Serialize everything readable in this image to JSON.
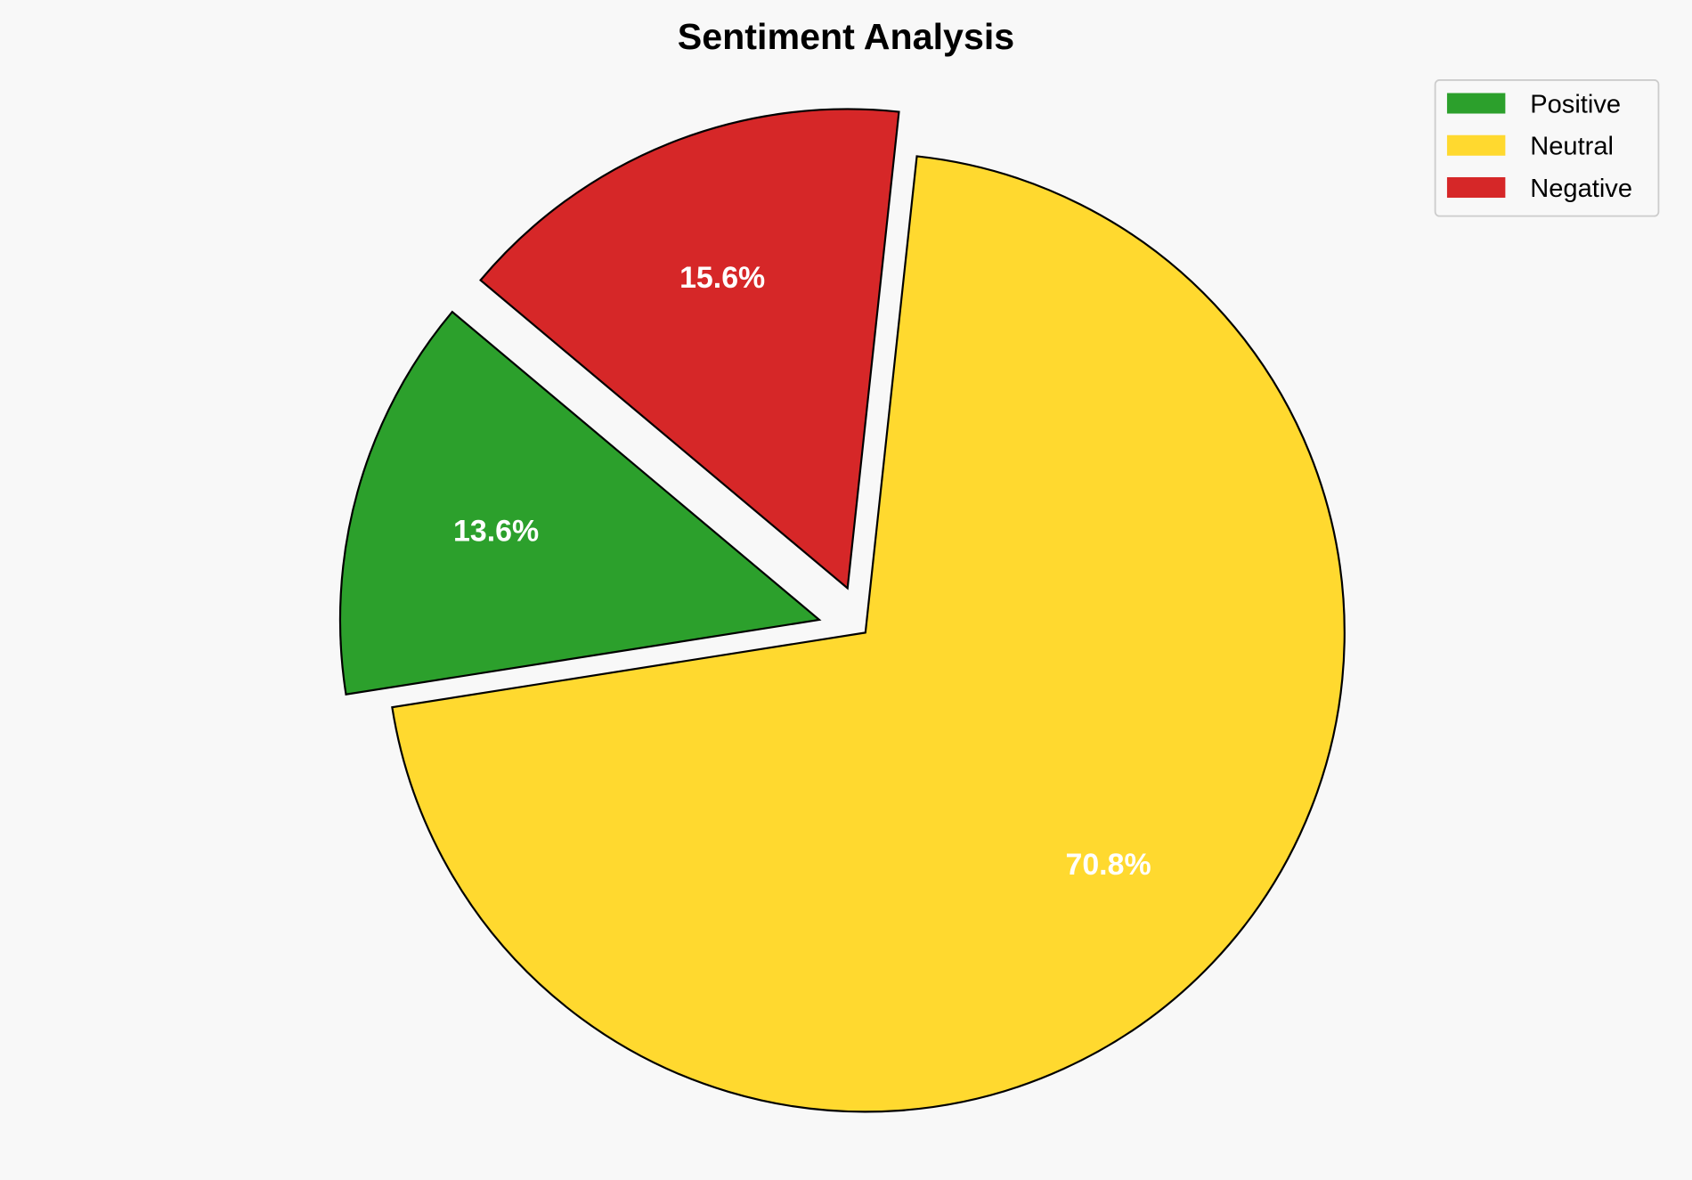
{
  "chart_data": {
    "type": "pie",
    "title": "Sentiment Analysis",
    "categories": [
      "Positive",
      "Neutral",
      "Negative"
    ],
    "values": [
      13.6,
      70.8,
      15.6
    ],
    "labels": [
      "13.6%",
      "70.8%",
      "15.6%"
    ],
    "colors": [
      "#2ca02c",
      "#ffd92f",
      "#d62728"
    ],
    "exploded": [
      true,
      false,
      true
    ],
    "start_angle_deg": 140,
    "direction": "counterclockwise",
    "legend_placement": "top-right",
    "background": "#f8f8f8"
  }
}
